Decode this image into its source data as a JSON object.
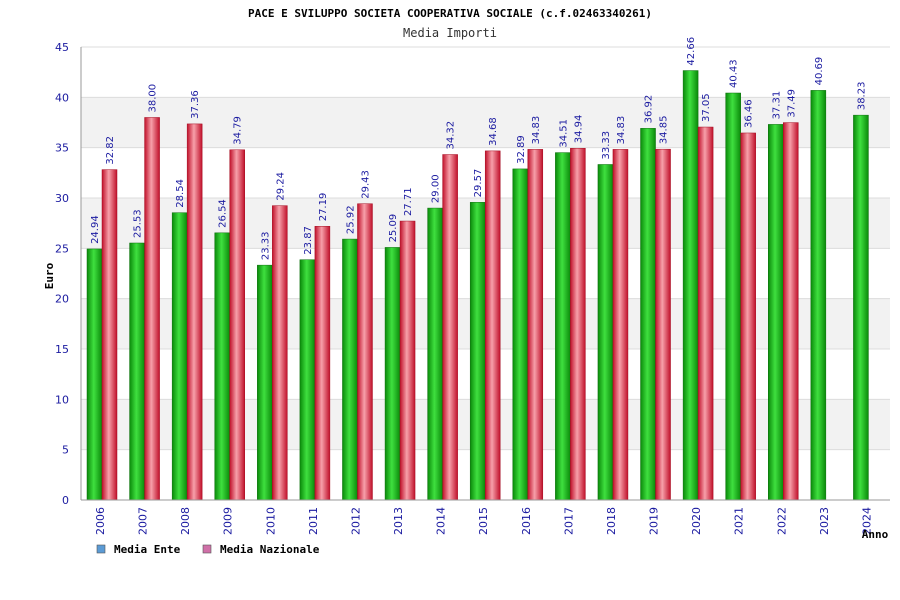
{
  "chart_data": {
    "type": "bar",
    "title": "PACE E SVILUPPO SOCIETA COOPERATIVA SOCIALE (c.f.02463340261)",
    "subtitle": "Media Importi",
    "xlabel": "Anno",
    "ylabel": "Euro",
    "ylim": [
      0,
      45
    ],
    "yticks": [
      0,
      5,
      10,
      15,
      20,
      25,
      30,
      35,
      40,
      45
    ],
    "grid": true,
    "categories": [
      "2006",
      "2007",
      "2008",
      "2009",
      "2010",
      "2011",
      "2012",
      "2013",
      "2014",
      "2015",
      "2016",
      "2017",
      "2018",
      "2019",
      "2020",
      "2021",
      "2022",
      "2023",
      "2024"
    ],
    "series": [
      {
        "name": "Media Ente",
        "color": "#1db81d",
        "legend_color": "#5b9bd5",
        "values": [
          24.94,
          25.53,
          28.54,
          26.54,
          23.33,
          23.87,
          25.92,
          25.09,
          29.0,
          29.57,
          32.89,
          34.51,
          33.33,
          36.92,
          42.66,
          40.43,
          37.31,
          40.69,
          38.23
        ],
        "labels": [
          "24.94",
          "25.53",
          "28.54",
          "26.54",
          "23.33",
          "23.87",
          "25.92",
          "25.09",
          "29.00",
          "29.57",
          "32.89",
          "34.51",
          "33.33",
          "36.92",
          "42.66",
          "40.43",
          "37.31",
          "40.69",
          "38.23"
        ]
      },
      {
        "name": "Media Nazionale",
        "color": "#e0283c",
        "legend_color": "#d070a8",
        "values": [
          32.82,
          38.0,
          37.36,
          34.79,
          29.24,
          27.19,
          29.43,
          27.71,
          34.32,
          34.68,
          34.83,
          34.94,
          34.83,
          34.85,
          37.05,
          36.46,
          37.49,
          null,
          null
        ],
        "labels": [
          "32.82",
          "38.00",
          "37.36",
          "34.79",
          "29.24",
          "27.19",
          "29.43",
          "27.71",
          "34.32",
          "34.68",
          "34.83",
          "34.94",
          "34.83",
          "34.85",
          "37.05",
          "36.46",
          "37.49",
          null,
          null
        ]
      }
    ],
    "legend_position": "bottom-left"
  }
}
